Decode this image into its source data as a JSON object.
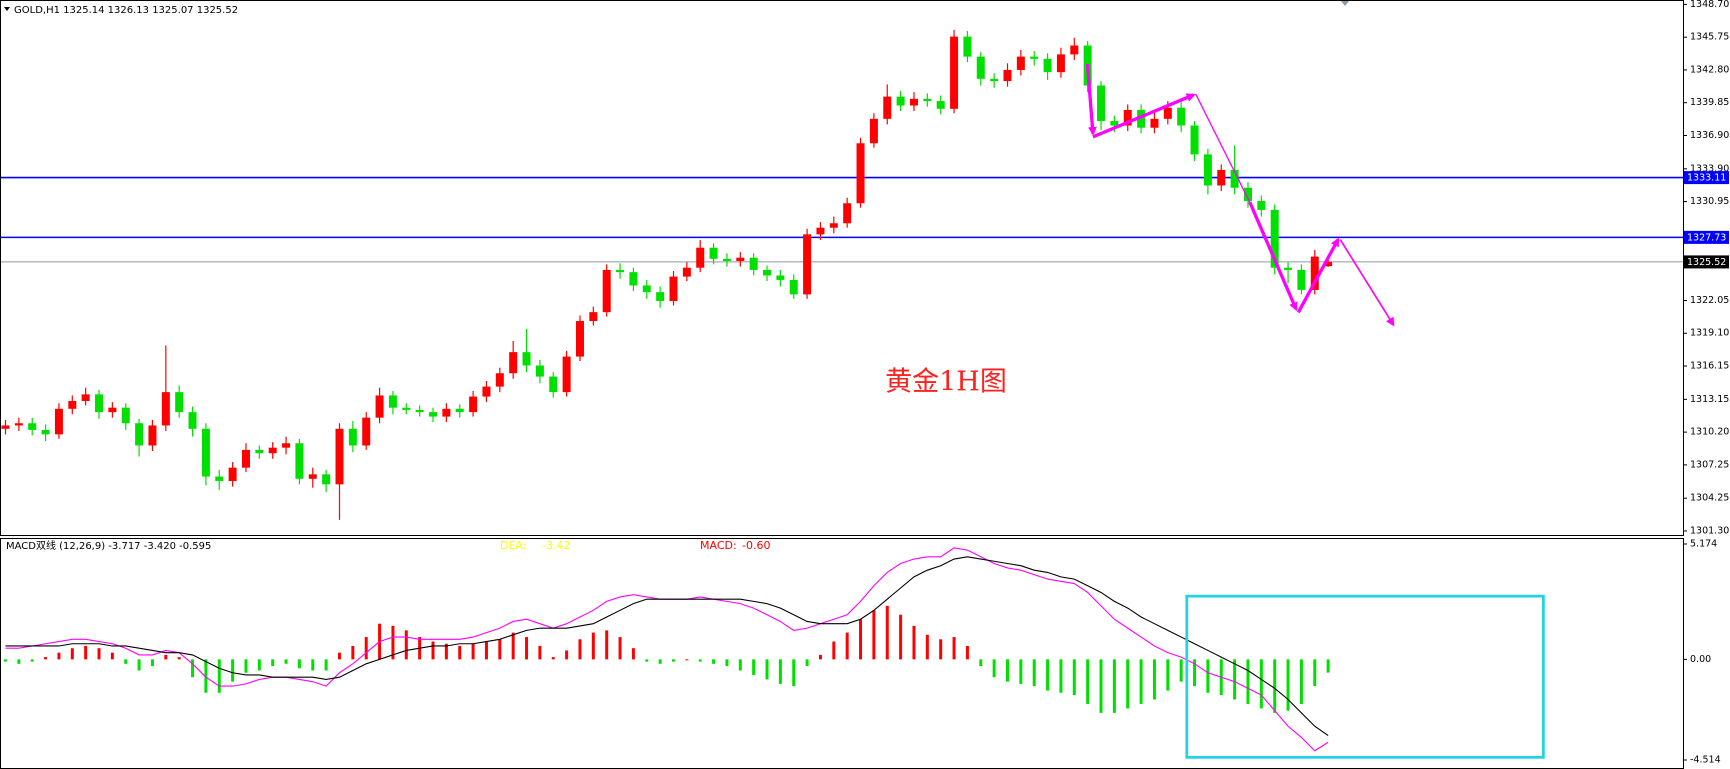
{
  "chart_data": [
    {
      "type": "candlestick",
      "title": "GOLD,H1  1325.14 1326.13 1325.07 1325.52",
      "annotation": "黄金1H图",
      "up_color": "#ff0000",
      "down_color": "#00e000",
      "open": [
        1310.5,
        1310.8,
        1311.0,
        1310.4,
        1310.0,
        1312.3,
        1313.0,
        1313.6,
        1312.0,
        1312.4,
        1311.0,
        1309.0,
        1310.8,
        1313.8,
        1312.0,
        1310.5,
        1306.2,
        1305.8,
        1307.0,
        1308.6,
        1308.3,
        1308.8,
        1309.2,
        1306.0,
        1306.4,
        1305.5,
        1310.5,
        1309.0,
        1311.5,
        1313.5,
        1312.4,
        1312.2,
        1312.0,
        1311.6,
        1312.3,
        1312.0,
        1313.4,
        1314.3,
        1315.5,
        1317.4,
        1316.2,
        1315.2,
        1313.8,
        1317.0,
        1320.2,
        1321.0,
        1324.8,
        1324.6,
        1323.4,
        1322.8,
        1322.0,
        1324.2,
        1325.0,
        1326.8,
        1325.8,
        1325.6,
        1325.9,
        1324.8,
        1324.3,
        1323.9,
        1322.6,
        1328.0,
        1328.6,
        1329.0,
        1330.8,
        1336.2,
        1338.4,
        1340.4,
        1339.6,
        1340.2,
        1340.0,
        1339.3,
        1345.8,
        1344.0,
        1342.0,
        1341.8,
        1342.8,
        1344.0,
        1343.8,
        1342.6,
        1344.2,
        1345.0,
        1341.4,
        1338.2,
        1337.8,
        1339.2,
        1337.6,
        1338.4,
        1339.4,
        1337.8,
        1335.2,
        1332.4,
        1333.8,
        1332.2,
        1331.0,
        1330.2,
        1325.0,
        1324.8,
        1323.0,
        1325.14
      ],
      "high": [
        1311.3,
        1311.5,
        1311.5,
        1310.9,
        1312.8,
        1313.5,
        1314.2,
        1314.0,
        1312.9,
        1312.8,
        1311.4,
        1311.3,
        1318.0,
        1314.4,
        1312.5,
        1311.0,
        1306.8,
        1307.5,
        1309.2,
        1309.0,
        1309.3,
        1309.8,
        1309.6,
        1307.0,
        1306.8,
        1311.0,
        1311.2,
        1312.0,
        1314.2,
        1313.9,
        1312.8,
        1312.6,
        1312.4,
        1312.8,
        1312.7,
        1313.9,
        1314.8,
        1316.0,
        1318.4,
        1319.5,
        1316.7,
        1315.6,
        1317.5,
        1320.7,
        1321.5,
        1325.3,
        1325.4,
        1325.0,
        1323.9,
        1323.3,
        1324.7,
        1325.5,
        1327.5,
        1327.2,
        1326.3,
        1326.4,
        1326.3,
        1325.2,
        1324.8,
        1324.4,
        1328.5,
        1329.1,
        1329.6,
        1331.3,
        1336.7,
        1338.9,
        1341.5,
        1340.9,
        1340.8,
        1340.7,
        1340.5,
        1346.4,
        1346.3,
        1344.4,
        1342.5,
        1343.4,
        1344.6,
        1344.5,
        1344.3,
        1344.8,
        1345.7,
        1345.4,
        1341.8,
        1338.7,
        1339.7,
        1339.7,
        1339.0,
        1340.0,
        1339.9,
        1338.2,
        1335.7,
        1334.3,
        1336.0,
        1332.7,
        1331.5,
        1330.7,
        1325.5,
        1325.3,
        1326.6,
        1326.13
      ],
      "low": [
        1310.0,
        1310.3,
        1309.9,
        1309.4,
        1309.6,
        1311.8,
        1312.6,
        1311.4,
        1311.5,
        1310.4,
        1308.0,
        1308.5,
        1310.3,
        1311.5,
        1309.8,
        1305.4,
        1305.0,
        1305.3,
        1306.6,
        1307.8,
        1307.8,
        1308.2,
        1305.5,
        1305.2,
        1304.8,
        1302.3,
        1308.4,
        1308.6,
        1311.0,
        1311.8,
        1311.8,
        1311.6,
        1311.1,
        1311.1,
        1311.5,
        1311.6,
        1312.9,
        1313.8,
        1315.0,
        1315.6,
        1314.6,
        1313.3,
        1313.4,
        1316.6,
        1319.8,
        1320.6,
        1324.0,
        1322.9,
        1322.2,
        1321.4,
        1321.6,
        1323.8,
        1324.6,
        1325.3,
        1325.1,
        1325.1,
        1324.3,
        1323.8,
        1323.3,
        1322.2,
        1322.2,
        1327.5,
        1328.1,
        1328.6,
        1330.4,
        1335.8,
        1337.9,
        1339.1,
        1339.1,
        1339.5,
        1338.8,
        1338.9,
        1343.5,
        1341.4,
        1341.2,
        1341.3,
        1342.3,
        1343.2,
        1341.9,
        1342.1,
        1343.7,
        1340.8,
        1337.4,
        1337.2,
        1337.3,
        1337.1,
        1337.1,
        1337.9,
        1337.2,
        1334.6,
        1331.6,
        1331.9,
        1331.6,
        1330.4,
        1329.6,
        1324.4,
        1323.6,
        1322.6,
        1322.6,
        1325.07
      ],
      "close": [
        1310.8,
        1311.0,
        1310.4,
        1310.0,
        1312.3,
        1313.0,
        1313.6,
        1312.0,
        1312.4,
        1311.0,
        1309.0,
        1310.8,
        1313.8,
        1312.0,
        1310.5,
        1306.2,
        1305.8,
        1307.0,
        1308.6,
        1308.3,
        1308.8,
        1309.2,
        1306.0,
        1306.4,
        1305.5,
        1310.5,
        1309.0,
        1311.5,
        1313.5,
        1312.4,
        1312.2,
        1312.0,
        1311.6,
        1312.3,
        1312.0,
        1313.4,
        1314.3,
        1315.5,
        1317.4,
        1316.2,
        1315.2,
        1313.8,
        1317.0,
        1320.2,
        1321.0,
        1324.8,
        1324.6,
        1323.4,
        1322.8,
        1322.0,
        1324.2,
        1325.0,
        1326.8,
        1325.8,
        1325.6,
        1325.9,
        1324.8,
        1324.3,
        1323.9,
        1322.6,
        1328.0,
        1328.6,
        1329.0,
        1330.8,
        1336.2,
        1338.4,
        1340.4,
        1339.6,
        1340.2,
        1340.0,
        1339.3,
        1345.8,
        1344.0,
        1342.0,
        1341.8,
        1342.8,
        1344.0,
        1343.8,
        1342.6,
        1344.2,
        1345.0,
        1341.4,
        1338.2,
        1337.8,
        1339.2,
        1337.6,
        1338.4,
        1339.4,
        1337.8,
        1335.2,
        1332.4,
        1333.8,
        1332.2,
        1331.0,
        1330.2,
        1325.0,
        1324.8,
        1323.0,
        1326.0,
        1325.52
      ],
      "ylim": [
        1301.3,
        1348.7
      ],
      "yticks": [
        {
          "value": 1348.7,
          "label": "1348.70"
        },
        1345.75,
        {
          "value": 1342.8,
          "label": "1342.80"
        },
        1339.85,
        {
          "value": 1336.9,
          "label": "1336.90"
        },
        {
          "value": 1333.9,
          "label": "1333.90"
        },
        1330.95,
        1322.05,
        {
          "value": 1319.1,
          "label": "1319.10"
        },
        1316.15,
        1313.15,
        {
          "value": 1310.2,
          "label": "1310.20"
        },
        1307.25,
        1304.25,
        {
          "value": 1301.3,
          "label": "1301.30"
        }
      ],
      "levels": [
        {
          "value": 1333.11,
          "color": "#0000ff",
          "label_color": "#0000ff"
        },
        {
          "value": 1327.73,
          "color": "#0000ff",
          "label_color": "#0000ff"
        },
        {
          "value": 1325.52,
          "color": "#8c9aa8",
          "label_color": "#000000"
        }
      ]
    },
    {
      "type": "macd",
      "title": "MACD双线 (12,26,9) -3.717 -3.420 -0.595",
      "stats": [
        {
          "label": "DEA:",
          "value": "-3.42",
          "color": "#ffff00"
        },
        {
          "label": "MACD:",
          "value": "-0.60",
          "color": "#ff0000"
        }
      ],
      "histogram": {
        "up_color": "#ff0000",
        "down_color": "#00e000",
        "values": [
          -0.1,
          -0.2,
          -0.1,
          0.1,
          0.3,
          0.5,
          0.6,
          0.5,
          0.3,
          -0.2,
          -0.5,
          -0.3,
          0.2,
          0.1,
          -0.8,
          -1.5,
          -1.5,
          -1.0,
          -0.6,
          -0.5,
          -0.3,
          -0.2,
          -0.4,
          -0.5,
          -0.5,
          0.3,
          0.6,
          1.0,
          1.6,
          1.5,
          1.3,
          1.0,
          0.8,
          0.7,
          0.6,
          0.7,
          0.8,
          0.9,
          1.2,
          1.0,
          0.6,
          0.1,
          0.4,
          0.9,
          1.2,
          1.3,
          1.0,
          0.5,
          -0.1,
          -0.2,
          -0.1,
          0.0,
          -0.1,
          -0.2,
          -0.3,
          -0.5,
          -0.7,
          -0.9,
          -1.1,
          -1.2,
          -0.3,
          0.2,
          0.8,
          1.2,
          1.8,
          2.2,
          2.4,
          2.0,
          1.5,
          1.1,
          0.9,
          1.0,
          0.6,
          -0.3,
          -0.8,
          -1.0,
          -1.1,
          -1.2,
          -1.4,
          -1.5,
          -1.6,
          -2.0,
          -2.4,
          -2.4,
          -2.2,
          -2.0,
          -1.8,
          -1.4,
          -1.0,
          -1.2,
          -1.5,
          -1.6,
          -1.8,
          -2.0,
          -2.2,
          -2.4,
          -2.3,
          -2.0,
          -1.2,
          -0.595
        ]
      },
      "lines": [
        {
          "color": "#ff00ff",
          "values": [
            0.5,
            0.5,
            0.6,
            0.7,
            0.8,
            0.9,
            0.9,
            0.8,
            0.7,
            0.5,
            0.2,
            0.2,
            0.4,
            0.3,
            -0.2,
            -0.8,
            -1.2,
            -1.2,
            -1.1,
            -0.9,
            -0.8,
            -0.8,
            -0.9,
            -1.0,
            -1.2,
            -0.6,
            -0.2,
            0.3,
            0.8,
            1.0,
            1.0,
            0.9,
            0.9,
            0.9,
            0.9,
            1.0,
            1.2,
            1.4,
            1.7,
            1.8,
            1.6,
            1.4,
            1.6,
            1.9,
            2.2,
            2.6,
            2.8,
            2.9,
            2.8,
            2.7,
            2.7,
            2.7,
            2.8,
            2.7,
            2.6,
            2.5,
            2.3,
            2.0,
            1.7,
            1.3,
            1.4,
            1.6,
            1.8,
            2.0,
            2.6,
            3.3,
            3.9,
            4.3,
            4.5,
            4.6,
            4.6,
            5.0,
            4.9,
            4.6,
            4.3,
            4.1,
            4.0,
            3.8,
            3.6,
            3.5,
            3.4,
            3.0,
            2.4,
            1.8,
            1.4,
            1.0,
            0.6,
            0.3,
            0.1,
            -0.2,
            -0.6,
            -0.8,
            -1.0,
            -1.3,
            -1.6,
            -2.3,
            -3.0,
            -3.5,
            -4.1,
            -3.717
          ]
        },
        {
          "color": "#000000",
          "values": [
            0.6,
            0.6,
            0.6,
            0.6,
            0.6,
            0.7,
            0.7,
            0.7,
            0.6,
            0.6,
            0.5,
            0.4,
            0.3,
            0.3,
            0.2,
            -0.1,
            -0.4,
            -0.6,
            -0.7,
            -0.7,
            -0.8,
            -0.8,
            -0.8,
            -0.8,
            -0.9,
            -0.8,
            -0.5,
            -0.2,
            0.0,
            0.2,
            0.4,
            0.5,
            0.6,
            0.6,
            0.7,
            0.7,
            0.8,
            0.9,
            1.1,
            1.3,
            1.4,
            1.4,
            1.4,
            1.5,
            1.6,
            1.9,
            2.2,
            2.5,
            2.7,
            2.7,
            2.7,
            2.7,
            2.7,
            2.7,
            2.7,
            2.7,
            2.6,
            2.5,
            2.3,
            2.0,
            1.7,
            1.6,
            1.6,
            1.6,
            1.8,
            2.2,
            2.7,
            3.2,
            3.7,
            4.0,
            4.2,
            4.5,
            4.6,
            4.5,
            4.4,
            4.3,
            4.2,
            4.0,
            3.9,
            3.7,
            3.6,
            3.3,
            3.0,
            2.6,
            2.3,
            1.9,
            1.6,
            1.3,
            1.0,
            0.7,
            0.4,
            0.1,
            -0.2,
            -0.5,
            -0.9,
            -1.3,
            -1.8,
            -2.4,
            -3.0,
            -3.42
          ]
        }
      ],
      "ylim": [
        -4.514,
        5.174
      ],
      "yticks": [
        5.174,
        {
          "value": 0,
          "label": "0.00"
        },
        -4.514
      ]
    }
  ]
}
